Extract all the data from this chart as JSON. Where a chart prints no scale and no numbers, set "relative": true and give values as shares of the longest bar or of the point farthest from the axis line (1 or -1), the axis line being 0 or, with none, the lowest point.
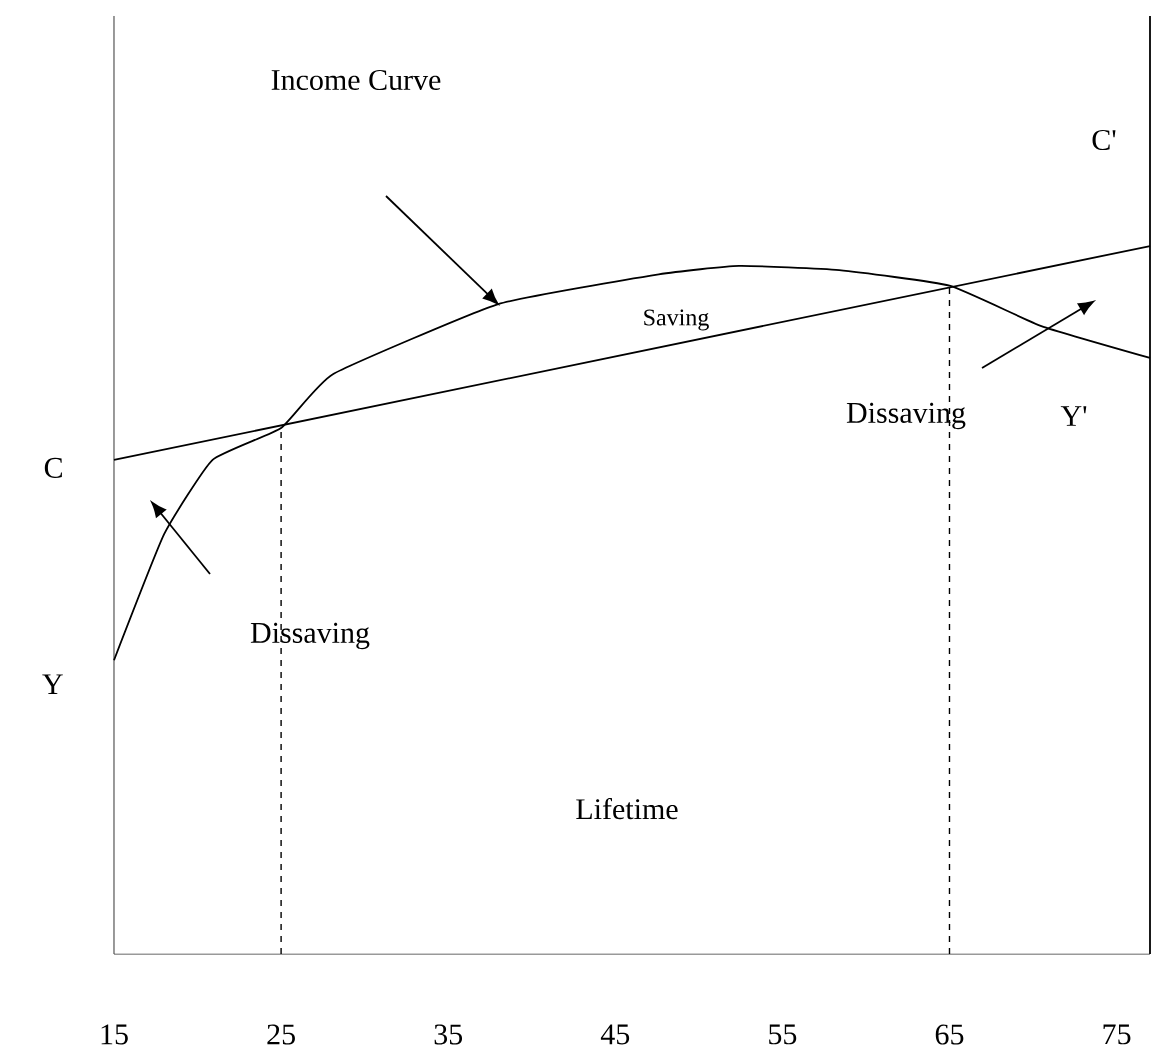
{
  "chart_data": {
    "type": "line",
    "relative": true,
    "xlabel": "Lifetime",
    "xlim": [
      15,
      77
    ],
    "xticks": [
      15,
      25,
      35,
      45,
      55,
      65,
      75
    ],
    "series": [
      {
        "name": "Y",
        "color": "#000000",
        "x": [
          15,
          18,
          20.9,
          25,
          28.1,
          38,
          47.6,
          52.4,
          58.4,
          65,
          70.5,
          77
        ],
        "values": [
          0.415,
          0.593,
          0.698,
          0.743,
          0.819,
          0.918,
          0.96,
          0.972,
          0.966,
          0.944,
          0.887,
          0.842
        ]
      },
      {
        "name": "C",
        "color": "#000000",
        "x": [
          15,
          77
        ],
        "values": [
          0.698,
          1.0
        ]
      }
    ],
    "ref_lines": [
      {
        "axis": "x",
        "value": 25,
        "line_style": "dashed"
      },
      {
        "axis": "x",
        "value": 65,
        "line_style": "dashed"
      }
    ],
    "annotations": [
      "Income Curve",
      "Saving",
      "Dissaving",
      "Dissaving",
      "C'",
      "Y'"
    ],
    "grid": false,
    "marker": "none",
    "line_style": "solid"
  }
}
